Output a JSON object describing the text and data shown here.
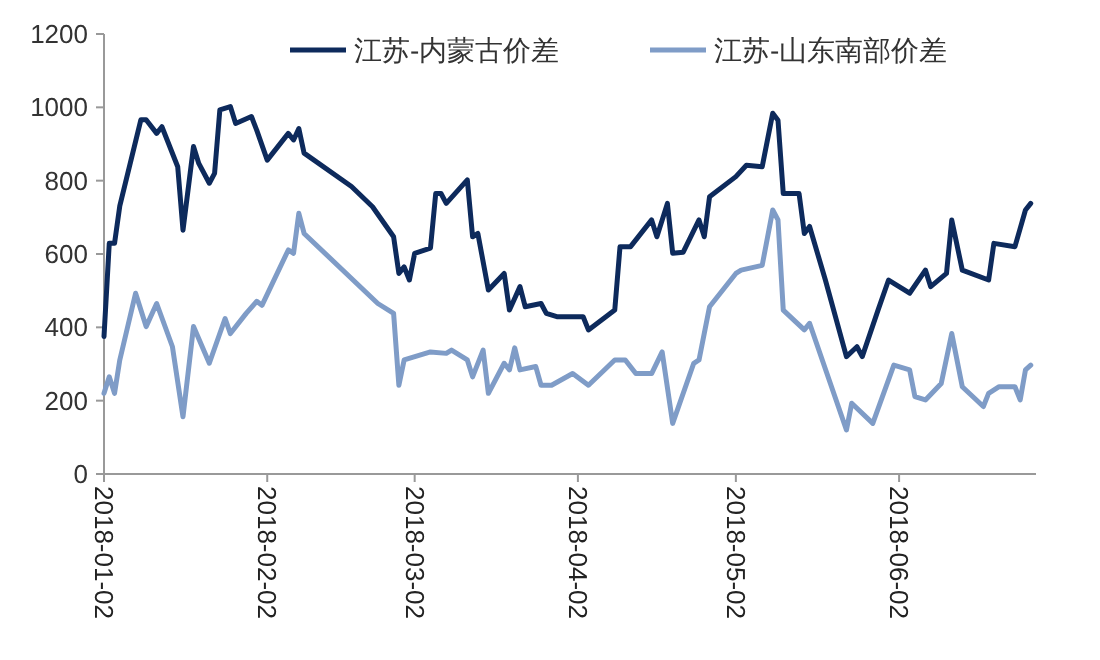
{
  "chart_data": {
    "type": "line",
    "xlim": [
      "2018-01-02",
      "2018-06-28"
    ],
    "xticks": [
      "2018-01-02",
      "2018-02-02",
      "2018-03-02",
      "2018-04-02",
      "2018-05-02",
      "2018-06-02"
    ],
    "ylim": [
      0,
      1200
    ],
    "yticks": [
      0,
      200,
      400,
      600,
      800,
      1000,
      1200
    ],
    "grid": false,
    "legend": "top",
    "marker": "none",
    "line_style": "solid",
    "series": [
      {
        "name": "江苏-内蒙古价差",
        "color": "#0d2a5c",
        "x": [
          "2018-01-02",
          "2018-01-03",
          "2018-01-04",
          "2018-01-05",
          "2018-01-09",
          "2018-01-10",
          "2018-01-12",
          "2018-01-13",
          "2018-01-16",
          "2018-01-17",
          "2018-01-19",
          "2018-01-20",
          "2018-01-22",
          "2018-01-23",
          "2018-01-24",
          "2018-01-26",
          "2018-01-27",
          "2018-01-30",
          "2018-01-31",
          "2018-02-02",
          "2018-02-06",
          "2018-02-07",
          "2018-02-08",
          "2018-02-09",
          "2018-02-18",
          "2018-02-22",
          "2018-02-26",
          "2018-02-27",
          "2018-02-28",
          "2018-03-01",
          "2018-03-02",
          "2018-03-05",
          "2018-03-06",
          "2018-03-07",
          "2018-03-08",
          "2018-03-12",
          "2018-03-13",
          "2018-03-14",
          "2018-03-16",
          "2018-03-19",
          "2018-03-20",
          "2018-03-22",
          "2018-03-23",
          "2018-03-26",
          "2018-03-27",
          "2018-03-29",
          "2018-04-03",
          "2018-04-04",
          "2018-04-09",
          "2018-04-10",
          "2018-04-12",
          "2018-04-16",
          "2018-04-17",
          "2018-04-19",
          "2018-04-20",
          "2018-04-22",
          "2018-04-25",
          "2018-04-26",
          "2018-04-27",
          "2018-05-02",
          "2018-05-04",
          "2018-05-07",
          "2018-05-09",
          "2018-05-10",
          "2018-05-11",
          "2018-05-14",
          "2018-05-15",
          "2018-05-16",
          "2018-05-19",
          "2018-05-23",
          "2018-05-25",
          "2018-05-26",
          "2018-05-29",
          "2018-05-31",
          "2018-06-04",
          "2018-06-07",
          "2018-06-08",
          "2018-06-11",
          "2018-06-12",
          "2018-06-14",
          "2018-06-19",
          "2018-06-20",
          "2018-06-24",
          "2018-06-26",
          "2018-06-27"
        ],
        "values": [
          375,
          629,
          629,
          731,
          966,
          966,
          929,
          947,
          838,
          665,
          893,
          847,
          793,
          820,
          993,
          1002,
          956,
          975,
          938,
          856,
          929,
          911,
          942,
          875,
          784,
          729,
          647,
          547,
          565,
          529,
          602,
          616,
          765,
          765,
          738,
          802,
          647,
          656,
          502,
          547,
          447,
          511,
          456,
          465,
          438,
          429,
          429,
          393,
          447,
          620,
          620,
          693,
          647,
          738,
          602,
          605,
          693,
          647,
          756,
          811,
          842,
          838,
          984,
          965,
          765,
          765,
          656,
          675,
          529,
          320,
          347,
          320,
          447,
          529,
          493,
          556,
          511,
          547,
          693,
          556,
          529,
          629,
          620,
          720,
          738
        ]
      },
      {
        "name": "江苏-山东南部价差",
        "color": "#7f9cc7",
        "x": [
          "2018-01-02",
          "2018-01-03",
          "2018-01-04",
          "2018-01-05",
          "2018-01-08",
          "2018-01-10",
          "2018-01-12",
          "2018-01-15",
          "2018-01-17",
          "2018-01-19",
          "2018-01-22",
          "2018-01-25",
          "2018-01-26",
          "2018-01-29",
          "2018-01-31",
          "2018-02-01",
          "2018-02-06",
          "2018-02-07",
          "2018-02-08",
          "2018-02-09",
          "2018-02-23",
          "2018-02-26",
          "2018-02-27",
          "2018-02-28",
          "2018-03-05",
          "2018-03-08",
          "2018-03-09",
          "2018-03-12",
          "2018-03-13",
          "2018-03-15",
          "2018-03-16",
          "2018-03-19",
          "2018-03-20",
          "2018-03-21",
          "2018-03-22",
          "2018-03-25",
          "2018-03-26",
          "2018-03-28",
          "2018-04-01",
          "2018-04-04",
          "2018-04-09",
          "2018-04-11",
          "2018-04-13",
          "2018-04-16",
          "2018-04-18",
          "2018-04-20",
          "2018-04-24",
          "2018-04-25",
          "2018-04-27",
          "2018-05-02",
          "2018-05-03",
          "2018-05-07",
          "2018-05-09",
          "2018-05-10",
          "2018-05-11",
          "2018-05-15",
          "2018-05-16",
          "2018-05-23",
          "2018-05-24",
          "2018-05-28",
          "2018-06-01",
          "2018-06-04",
          "2018-06-05",
          "2018-06-07",
          "2018-06-10",
          "2018-06-12",
          "2018-06-14",
          "2018-06-18",
          "2018-06-19",
          "2018-06-21",
          "2018-06-24",
          "2018-06-25",
          "2018-06-26",
          "2018-06-27"
        ],
        "values": [
          220,
          265,
          220,
          311,
          493,
          402,
          465,
          347,
          156,
          402,
          302,
          424,
          383,
          438,
          471,
          460,
          611,
          602,
          711,
          656,
          465,
          438,
          242,
          311,
          333,
          329,
          338,
          311,
          265,
          338,
          220,
          302,
          284,
          344,
          284,
          293,
          242,
          242,
          274,
          242,
          311,
          311,
          274,
          274,
          333,
          138,
          302,
          311,
          456,
          547,
          556,
          569,
          720,
          693,
          447,
          393,
          411,
          120,
          193,
          138,
          297,
          284,
          211,
          202,
          247,
          383,
          238,
          184,
          220,
          238,
          238,
          202,
          284,
          297
        ]
      }
    ]
  }
}
